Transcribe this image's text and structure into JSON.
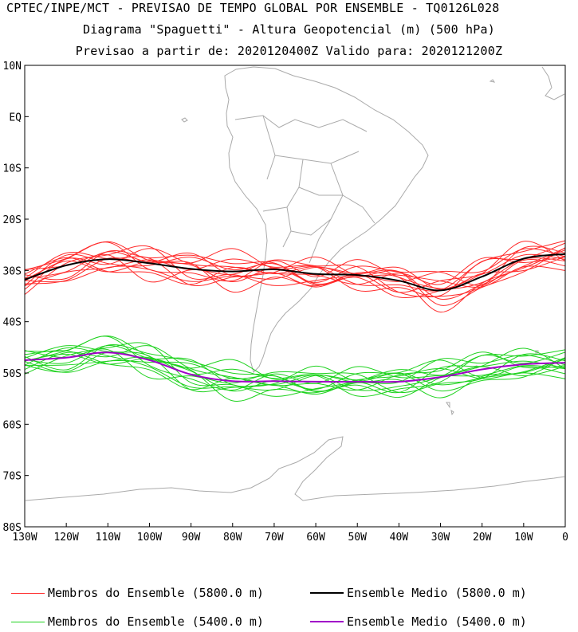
{
  "title": {
    "line1": "CPTEC/INPE/MCT - PREVISAO DE TEMPO GLOBAL POR ENSEMBLE - TQ0126L028",
    "line2": "Diagrama \"Spaguetti\" - Altura Geopotencial (m) (500 hPa)",
    "line3": "Previsao a partir de: 2020120400Z  Valido para: 2020121200Z"
  },
  "map": {
    "lon_range": [
      -130,
      0
    ],
    "lat_range": [
      -80,
      10
    ],
    "lat_ticks": [
      "10N",
      "EQ",
      "10S",
      "20S",
      "30S",
      "40S",
      "50S",
      "60S",
      "70S",
      "80S"
    ],
    "lon_ticks": [
      "130W",
      "120W",
      "110W",
      "100W",
      "90W",
      "80W",
      "70W",
      "60W",
      "50W",
      "40W",
      "30W",
      "20W",
      "10W",
      "0"
    ],
    "coastline_color": "#aaaaaa"
  },
  "chart_data": {
    "type": "line",
    "x_units": "longitude (deg)",
    "y_units": "latitude (deg)",
    "x": [
      -130,
      -120,
      -110,
      -100,
      -90,
      -80,
      -70,
      -60,
      -50,
      -40,
      -30,
      -20,
      -10,
      0
    ],
    "series": [
      {
        "name": "Ensemble Medio (5800.0 m)",
        "color": "#000000",
        "values": [
          -31.8,
          -29.0,
          -27.8,
          -28.6,
          -29.7,
          -30.2,
          -29.8,
          -30.7,
          -30.9,
          -32.0,
          -33.9,
          -31.2,
          -27.7,
          -26.8
        ]
      },
      {
        "name": "Ensemble Medio (5400.0 m)",
        "color": "#a000c8",
        "values": [
          -47.5,
          -47.0,
          -46.0,
          -47.5,
          -50.3,
          -51.6,
          -51.6,
          -51.7,
          -51.7,
          -51.7,
          -50.8,
          -49.3,
          -48.3,
          -48.0
        ]
      }
    ],
    "ensemble_members": {
      "5800": {
        "name": "Membros do Ensemble (5800.0 m)",
        "color": "#ff2a2a",
        "offsets": [
          0.0,
          1.4,
          -1.2,
          0.7,
          -0.9,
          1.8,
          -1.6,
          0.4,
          -0.5,
          2.2,
          -2.0,
          1.0,
          -1.1,
          0.2
        ]
      },
      "5400": {
        "name": "Membros do Ensemble (5400.0 m)",
        "color": "#1ed21e",
        "offsets": [
          0.0,
          1.2,
          -1.0,
          0.6,
          -0.8,
          1.6,
          -1.4,
          0.3,
          -0.4,
          1.9,
          -1.8,
          0.9,
          -0.9,
          0.1
        ]
      }
    }
  },
  "legend": {
    "members_5800": "Membros do Ensemble (5800.0 m)",
    "mean_5800": "Ensemble Medio (5800.0 m)",
    "members_5400": "Membros do Ensemble (5400.0 m)",
    "mean_5400": "Ensemble Medio (5400.0 m)"
  }
}
